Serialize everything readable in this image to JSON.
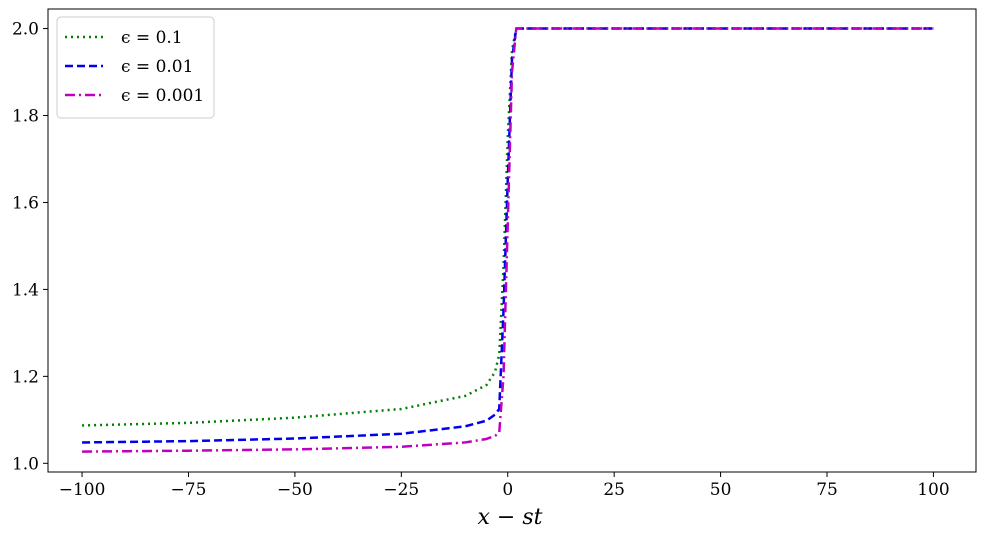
{
  "chart_data": {
    "type": "line",
    "title": "",
    "xlabel": "x − st",
    "ylabel": "",
    "xlim": [
      -108,
      110
    ],
    "ylim": [
      0.98,
      2.045
    ],
    "xticks": [
      -100,
      -75,
      -50,
      -25,
      0,
      25,
      50,
      75,
      100
    ],
    "xtick_labels": [
      "−100",
      "−75",
      "−50",
      "−25",
      "0",
      "25",
      "50",
      "75",
      "100"
    ],
    "yticks": [
      1.0,
      1.2,
      1.4,
      1.6,
      1.8,
      2.0
    ],
    "ytick_labels": [
      "1.0",
      "1.2",
      "1.4",
      "1.6",
      "1.8",
      "2.0"
    ],
    "grid": false,
    "legend_position": "top-left",
    "series": [
      {
        "name": "ϵ = 0.1",
        "color": "#008000",
        "style": "dotted",
        "x": [
          -100,
          -75,
          -50,
          -25,
          -10,
          -5,
          -3,
          -2,
          -1,
          0,
          1,
          2,
          25,
          50,
          75,
          100
        ],
        "y": [
          1.087,
          1.093,
          1.105,
          1.125,
          1.155,
          1.18,
          1.21,
          1.25,
          1.45,
          1.75,
          1.95,
          2.0,
          2.0,
          2.0,
          2.0,
          2.0
        ]
      },
      {
        "name": "ϵ = 0.01",
        "color": "#0000ee",
        "style": "dashed",
        "x": [
          -100,
          -75,
          -50,
          -25,
          -10,
          -5,
          -3,
          -2,
          -1,
          0,
          1,
          2,
          25,
          50,
          75,
          100
        ],
        "y": [
          1.048,
          1.051,
          1.057,
          1.068,
          1.085,
          1.098,
          1.112,
          1.125,
          1.35,
          1.65,
          1.93,
          2.0,
          2.0,
          2.0,
          2.0,
          2.0
        ]
      },
      {
        "name": "ϵ = 0.001",
        "color": "#c000c0",
        "style": "dashdot",
        "x": [
          -100,
          -75,
          -50,
          -25,
          -10,
          -5,
          -3,
          -2,
          -1,
          0,
          1,
          2,
          25,
          50,
          75,
          100
        ],
        "y": [
          1.027,
          1.029,
          1.032,
          1.038,
          1.048,
          1.056,
          1.063,
          1.07,
          1.2,
          1.55,
          1.9,
          2.0,
          2.0,
          2.0,
          2.0,
          2.0
        ]
      }
    ]
  }
}
